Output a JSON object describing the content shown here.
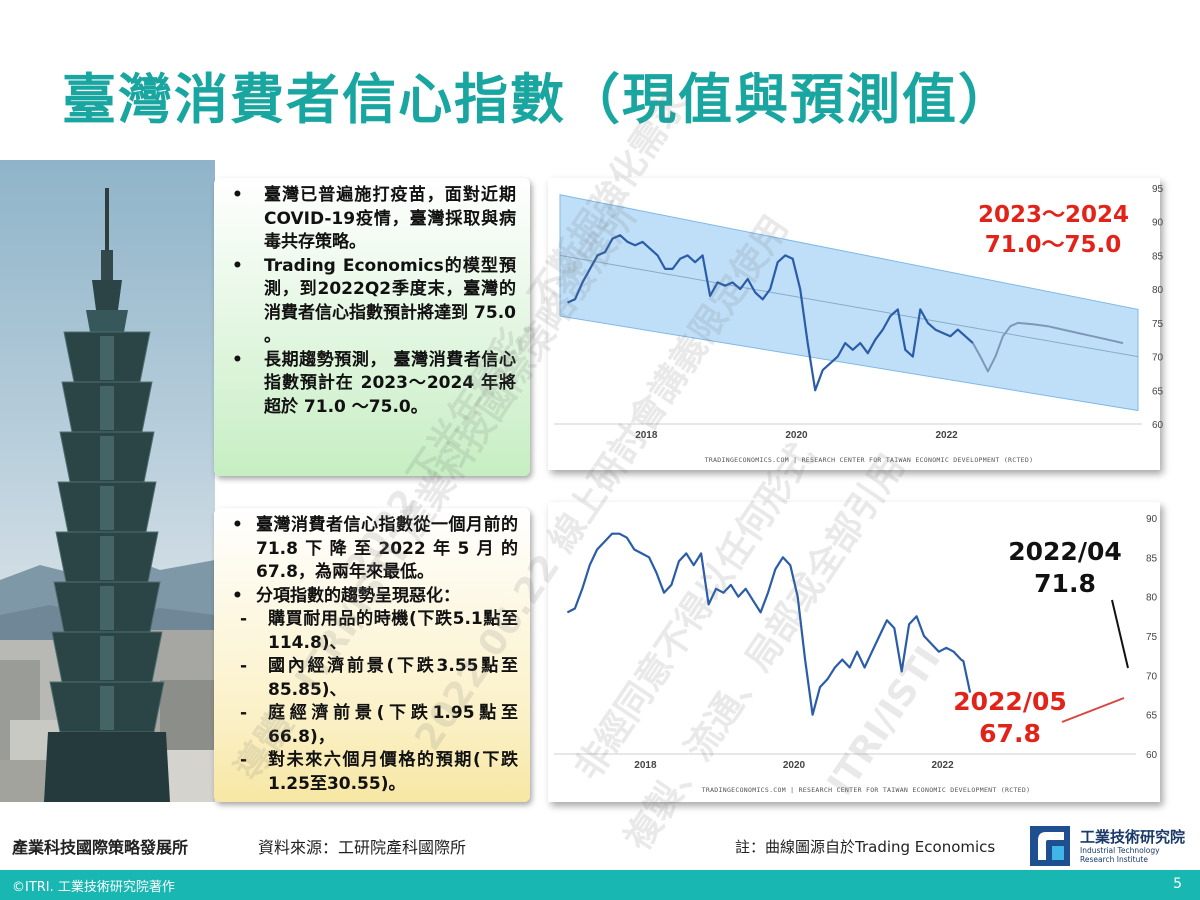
{
  "title": "臺灣消費者信心指數（現值與預測值）",
  "box1": {
    "bullet": "•",
    "items": [
      "臺灣已普遍施打疫苗，面對近期COVID-19疫情，臺灣採取與病毒共存策略。",
      "Trading Economics的模型預測，到2022Q2季度末，臺灣的消費者信心指數預計將達到 75.0 。",
      "長期趨勢預測， 臺灣消費者信心指數預計在 2023～2024 年將超於 71.0 ～75.0。"
    ]
  },
  "box2": {
    "bullet": "•",
    "dash": "-",
    "items": [
      {
        "level": 1,
        "text": "臺灣消費者信心指數從一個月前的71.8下降至2022年5月的67.8，為兩年來最低。"
      },
      {
        "level": 1,
        "text": "分項指數的趨勢呈現惡化："
      },
      {
        "level": 2,
        "text": "購買耐用品的時機(下跌5.1點至114.8)、"
      },
      {
        "level": 2,
        "text": "國內經濟前景(下跌3.55點至85.85)、"
      },
      {
        "level": 2,
        "text": "庭經濟前景(下跌1.95點至66.8)，"
      },
      {
        "level": 2,
        "text": "對未來六個月價格的預期(下跌1.25至30.55)。"
      }
    ]
  },
  "chart_data": [
    {
      "type": "line",
      "x_ticks": [
        "2018",
        "2020",
        "2022"
      ],
      "ylim": [
        60,
        95
      ],
      "y_ticks": [
        60,
        65,
        70,
        75,
        80,
        85,
        90,
        95
      ],
      "y_axis_side": "right",
      "grid": false,
      "source": "TRADINGECONOMICS.COM  |  RESEARCH CENTER FOR TAIWAN ECONOMIC DEVELOPMENT (RCTED)",
      "series": [
        {
          "kind": "actual",
          "x": [
            2017.0,
            2017.1,
            2017.2,
            2017.3,
            2017.4,
            2017.5,
            2017.6,
            2017.7,
            2017.8,
            2017.9,
            2018.0,
            2018.1,
            2018.2,
            2018.3,
            2018.4,
            2018.5,
            2018.6,
            2018.7,
            2018.8,
            2018.9,
            2019.0,
            2019.1,
            2019.2,
            2019.3,
            2019.4,
            2019.5,
            2019.6,
            2019.7,
            2019.8,
            2019.9,
            2020.0,
            2020.1,
            2020.2,
            2020.3,
            2020.4,
            2020.5,
            2020.6,
            2020.7,
            2020.8,
            2020.9,
            2021.0,
            2021.1,
            2021.2,
            2021.3,
            2021.4,
            2021.5,
            2021.6,
            2021.7,
            2021.8,
            2021.9,
            2022.0,
            2022.1,
            2022.2,
            2022.3,
            2022.4
          ],
          "y": [
            78.0,
            78.5,
            81.0,
            83.0,
            85.0,
            85.5,
            87.5,
            88.0,
            87.0,
            86.5,
            87.0,
            86.0,
            85.0,
            83.0,
            83.0,
            84.5,
            85.0,
            84.0,
            85.0,
            79.0,
            81.0,
            80.5,
            81.0,
            80.0,
            81.5,
            79.5,
            78.5,
            80.0,
            84.0,
            85.0,
            84.5,
            80.0,
            72.0,
            65.0,
            68.0,
            69.0,
            70.0,
            72.0,
            71.0,
            72.0,
            70.5,
            72.5,
            74.0,
            76.0,
            77.0,
            71.0,
            70.0,
            77.0,
            75.0,
            74.0,
            73.5,
            73.0,
            74.0,
            73.0,
            72.0
          ]
        },
        {
          "kind": "forecast",
          "x": [
            2022.4,
            2022.5,
            2022.6,
            2022.7,
            2022.8,
            2022.9,
            2023.0,
            2023.2,
            2023.4,
            2023.6,
            2023.8,
            2024.0,
            2024.2,
            2024.4
          ],
          "y": [
            72.0,
            70.0,
            67.8,
            70.0,
            73.0,
            74.5,
            75.0,
            74.8,
            74.5,
            74.0,
            73.5,
            73.0,
            72.5,
            72.0
          ]
        },
        {
          "kind": "band",
          "x": [
            2016.9,
            2024.6
          ],
          "upper": [
            94.0,
            77.0
          ],
          "lower": [
            76.0,
            62.0
          ],
          "trend": [
            85.0,
            70.0
          ]
        }
      ]
    },
    {
      "type": "line",
      "x_ticks": [
        "2018",
        "2020",
        "2022"
      ],
      "ylim": [
        60,
        90
      ],
      "y_ticks": [
        60,
        65,
        70,
        75,
        80,
        85,
        90
      ],
      "y_axis_side": "right",
      "grid": false,
      "source": "TRADINGECONOMICS.COM  |  RESEARCH CENTER FOR TAIWAN ECONOMIC DEVELOPMENT (RCTED)",
      "series": [
        {
          "kind": "actual",
          "x": [
            2017.0,
            2017.1,
            2017.2,
            2017.3,
            2017.4,
            2017.5,
            2017.6,
            2017.7,
            2017.8,
            2017.9,
            2018.0,
            2018.1,
            2018.2,
            2018.3,
            2018.4,
            2018.5,
            2018.6,
            2018.7,
            2018.8,
            2018.9,
            2019.0,
            2019.1,
            2019.2,
            2019.3,
            2019.4,
            2019.5,
            2019.6,
            2019.7,
            2019.8,
            2019.9,
            2020.0,
            2020.1,
            2020.2,
            2020.3,
            2020.4,
            2020.5,
            2020.6,
            2020.7,
            2020.8,
            2020.9,
            2021.0,
            2021.1,
            2021.2,
            2021.3,
            2021.4,
            2021.5,
            2021.6,
            2021.7,
            2021.8,
            2021.9,
            2022.0,
            2022.1,
            2022.2,
            2022.3,
            2022.33,
            2022.42
          ],
          "y": [
            78.0,
            78.5,
            81.0,
            84.0,
            86.0,
            87.0,
            88.0,
            88.0,
            87.5,
            86.0,
            85.5,
            85.0,
            83.0,
            80.5,
            81.5,
            84.5,
            85.5,
            84.0,
            85.5,
            79.0,
            81.0,
            80.5,
            81.5,
            80.0,
            81.0,
            79.5,
            78.0,
            80.5,
            83.5,
            85.0,
            84.0,
            80.0,
            72.0,
            65.0,
            68.5,
            69.5,
            71.0,
            72.0,
            71.0,
            73.0,
            71.0,
            73.0,
            75.0,
            77.0,
            76.0,
            70.5,
            76.5,
            77.5,
            75.0,
            74.0,
            73.0,
            73.5,
            73.0,
            72.0,
            71.8,
            67.8
          ]
        }
      ]
    }
  ],
  "annotations": {
    "chart1_forecast": [
      "2023～2024",
      "71.0～75.0"
    ],
    "chart2_april": [
      "2022/04",
      "71.8"
    ],
    "chart2_may": [
      "2022/05",
      "67.8"
    ]
  },
  "footer": {
    "org": "產業科技國際策略發展所",
    "source": "資料來源：工研院產科國際所",
    "note": "註：曲線圖源自於Trading Economics",
    "logo_cn": "工業技術研究院",
    "logo_en_1": "Industrial Technology",
    "logo_en_2": "Research Institute",
    "copyright": "©ITRI. 工業技術研究院著作",
    "page": "5"
  },
  "watermarks": [
    "導體、ITRI/ISTI 產業科技國際策略發展所",
    "2022 下半年精彩，不斷掘強化需求",
    "2022 06.22 線上研討會講義限定使用",
    "非經同意不得以任何形式",
    "複製、流通、局部或全部引用",
    "ITRI/ISTI"
  ],
  "colors": {
    "title": "#1aa6a0",
    "line": "#2a5ca8",
    "band": "#a9d4f5",
    "forecast": "#7f96b8",
    "red": "#e2231a",
    "footer_bar": "#18b7b2"
  }
}
